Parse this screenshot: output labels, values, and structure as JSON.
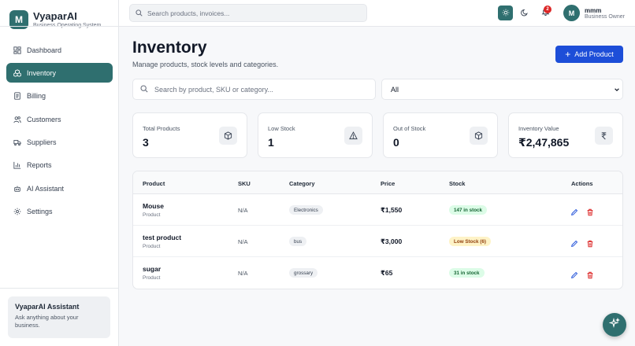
{
  "brand": {
    "logo_letter": "M",
    "name": "VyaparAI",
    "subtitle": "Business Operating System"
  },
  "sidebar": {
    "items": [
      {
        "label": "Dashboard",
        "icon": "grid-icon",
        "active": false
      },
      {
        "label": "Inventory",
        "icon": "boxes-icon",
        "active": true
      },
      {
        "label": "Billing",
        "icon": "receipt-icon",
        "active": false
      },
      {
        "label": "Customers",
        "icon": "users-icon",
        "active": false
      },
      {
        "label": "Suppliers",
        "icon": "truck-icon",
        "active": false
      },
      {
        "label": "Reports",
        "icon": "bar-chart-icon",
        "active": false
      },
      {
        "label": "AI Assistant",
        "icon": "bot-icon",
        "active": false
      },
      {
        "label": "Settings",
        "icon": "gear-icon",
        "active": false
      }
    ],
    "assistant_card": {
      "title": "VyaparAI Assistant",
      "description": "Ask anything about your business."
    }
  },
  "header": {
    "search_placeholder": "Search products, invoices...",
    "notification_count": "2",
    "user": {
      "initial": "M",
      "name": "mmm",
      "role": "Business Owner"
    }
  },
  "page": {
    "title": "Inventory",
    "subtitle": "Manage products, stock levels and categories.",
    "add_button": "Add Product",
    "filter_search_placeholder": "Search by product, SKU or category...",
    "filter_select_value": "All"
  },
  "stats": [
    {
      "label": "Total Products",
      "value": "3",
      "icon": "package-icon"
    },
    {
      "label": "Low Stock",
      "value": "1",
      "icon": "warning-triangle-icon"
    },
    {
      "label": "Out of Stock",
      "value": "0",
      "icon": "package-icon"
    },
    {
      "label": "Inventory Value",
      "value": "₹2,47,865",
      "icon": "rupee-icon"
    }
  ],
  "table": {
    "columns": [
      "Product",
      "SKU",
      "Category",
      "Price",
      "Stock",
      "Actions"
    ],
    "rows": [
      {
        "name": "Mouse",
        "type": "Product",
        "sku": "N/A",
        "category": "Electronics",
        "price": "₹1,550",
        "stock": "147 in stock",
        "stock_status": "ok"
      },
      {
        "name": "test product",
        "type": "Product",
        "sku": "N/A",
        "category": "bus",
        "price": "₹3,000",
        "stock": "Low Stock (6)",
        "stock_status": "low"
      },
      {
        "name": "sugar",
        "type": "Product",
        "sku": "N/A",
        "category": "grossary",
        "price": "₹65",
        "stock": "31 in stock",
        "stock_status": "ok"
      }
    ]
  },
  "colors": {
    "primary": "#2f6f6f",
    "accent_button": "#1d4ed8",
    "danger": "#dc2626"
  }
}
